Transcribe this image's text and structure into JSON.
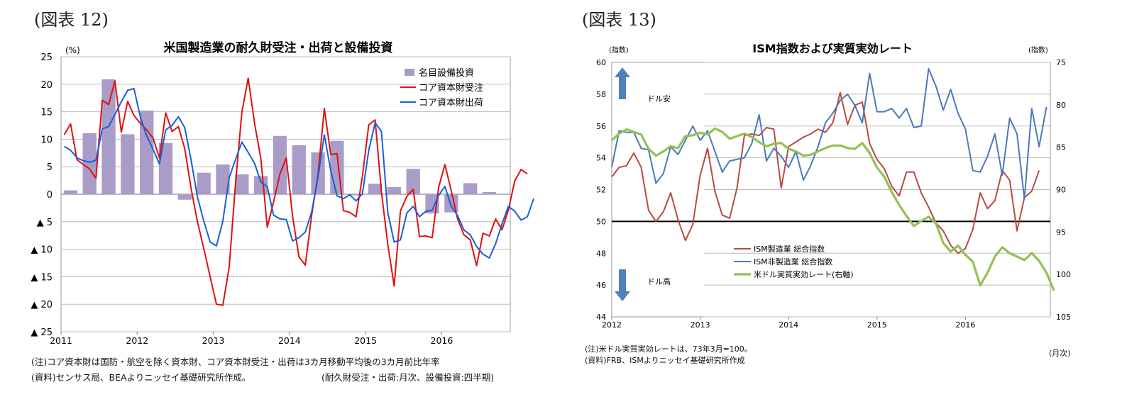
{
  "figures": {
    "fig12_label": "(図表 12)",
    "fig13_label": "(図表 13)"
  },
  "notes12": {
    "line1": "(注)コア資本財は国防・航空を除く資本財、コア資本財受注・出荷は3カ月移動平均後の3カ月前比年率",
    "line2": "(資料)センサス局、BEAよりニッセイ基礎研究所作成。",
    "line2_right": "(耐久財受注・出荷:月次、設備投資:四半期)"
  },
  "notes13": {
    "line1": "(注)米ドル実質実効レートは、73年3月=100。",
    "line2": "(資料)FRB、ISMよりニッセイ基礎研究所作成",
    "month_unit": "(月次)"
  },
  "colors": {
    "bar_purple": "#a99cc8",
    "red": "#e01010",
    "blue": "#1a5fd6",
    "ism_red": "#b84a44",
    "ism_blue": "#4a7ab8",
    "usd_green": "#93c054",
    "arrow_blue": "#4f81bd"
  },
  "chart_data": [
    {
      "type": "bar+line",
      "title": "米国製造業の耐久財受注・出荷と設備投資",
      "unit_label": "(%)",
      "xlabels": [
        "2011",
        "2012",
        "2013",
        "2014",
        "2015",
        "2016"
      ],
      "ylim": [
        -25,
        25
      ],
      "yticks": [
        "25",
        "20",
        "15",
        "10",
        "5",
        "0",
        "▲ 5",
        "▲ 10",
        "▲ 15",
        "▲ 20",
        "▲ 25"
      ],
      "legend_position": "top-right",
      "bars": {
        "name": "名目設備投資",
        "values": [
          0.7,
          11.1,
          20.9,
          10.9,
          15.2,
          9.3,
          -1.0,
          3.9,
          5.4,
          3.6,
          3.3,
          10.6,
          8.9,
          7.6,
          9.7,
          -0.2,
          1.9,
          1.3,
          4.6,
          -3.5,
          -3.3,
          2.0,
          0.4
        ]
      },
      "series": [
        {
          "name": "コア資本財受注",
          "values": [
            10.8,
            12.8,
            6.3,
            5.4,
            4.6,
            2.9,
            17.1,
            16.3,
            20.6,
            11.3,
            16.9,
            14.3,
            12.9,
            11.7,
            10.2,
            6.6,
            14.8,
            11.4,
            12.3,
            8.3,
            1.0,
            -5.0,
            -9.9,
            -15.0,
            -20.0,
            -20.2,
            -13.3,
            2.0,
            14.9,
            21.1,
            12.9,
            6.4,
            -6.0,
            -1.4,
            3.7,
            6.6,
            -4.0,
            -11.4,
            -12.9,
            -3.8,
            3.6,
            15.6,
            7.2,
            7.4,
            -3.0,
            -3.3,
            -4.1,
            3.3,
            12.6,
            13.5,
            0.4,
            -9.1,
            -16.7,
            -3.0,
            -0.4,
            0.9,
            -7.7,
            -7.6,
            -7.9,
            1.2,
            5.4,
            0.6,
            -4.5,
            -7.4,
            -8.3,
            -13.0,
            -7.1,
            -7.6,
            -4.5,
            -6.5,
            -2.9,
            2.4,
            4.5,
            3.7
          ]
        },
        {
          "name": "コア資本財出荷",
          "values": [
            8.7,
            8.0,
            6.6,
            6.1,
            5.8,
            6.2,
            11.9,
            12.3,
            14.5,
            16.8,
            18.9,
            19.2,
            14.0,
            10.6,
            8.2,
            5.5,
            11.7,
            12.5,
            14.1,
            12.1,
            6.2,
            -0.5,
            -4.9,
            -8.7,
            -9.4,
            -4.9,
            3.0,
            6.3,
            9.5,
            7.6,
            5.6,
            2.2,
            1.4,
            -3.8,
            -4.5,
            -4.6,
            -8.5,
            -7.9,
            -6.9,
            -3.2,
            3.1,
            10.8,
            4.3,
            -0.3,
            -0.8,
            -0.1,
            -1.2,
            0.1,
            8.0,
            13.0,
            11.4,
            -3.3,
            -8.7,
            -8.3,
            -3.4,
            -2.2,
            -4.1,
            -3.1,
            -2.9,
            -0.2,
            1.4,
            -2.2,
            -3.9,
            -6.5,
            -7.4,
            -9.5,
            -10.9,
            -11.6,
            -9.0,
            -5.4,
            -2.2,
            -3.1,
            -4.7,
            -4.1,
            -0.8
          ]
        }
      ]
    },
    {
      "type": "line",
      "title": "ISM指数および実質実効レート",
      "left_axis_label": "(指数)",
      "right_axis_label": "(指数)",
      "xlabels": [
        "2012",
        "2013",
        "2014",
        "2015",
        "2016"
      ],
      "ylim_left": [
        44,
        60
      ],
      "yticks_left": [
        "60",
        "58",
        "56",
        "54",
        "52",
        "50",
        "48",
        "46",
        "44"
      ],
      "ylim_right": [
        105,
        75
      ],
      "yticks_right": [
        "75",
        "80",
        "85",
        "90",
        "95",
        "100",
        "105"
      ],
      "annotations": [
        "ドル安",
        "ドル高"
      ],
      "legend_position": "bottom-left",
      "series": [
        {
          "name": "ISM製造業 総合指数",
          "axis": "left",
          "values": [
            52.8,
            53.4,
            53.5,
            54.3,
            53.4,
            50.7,
            50.0,
            50.6,
            51.8,
            50.1,
            48.8,
            49.8,
            52.9,
            54.6,
            51.9,
            50.4,
            50.2,
            52.1,
            55.4,
            55.5,
            55.4,
            55.9,
            55.8,
            52.1,
            54.7,
            55.0,
            55.3,
            55.5,
            55.8,
            55.6,
            56.2,
            58.1,
            56.1,
            57.3,
            57.5,
            54.9,
            53.9,
            53.3,
            52.2,
            51.6,
            53.1,
            53.1,
            51.8,
            50.9,
            49.9,
            49.4,
            48.5,
            48.0,
            48.3,
            49.5,
            51.8,
            50.8,
            51.3,
            53.2,
            52.6,
            49.4,
            51.5,
            51.9,
            53.2
          ]
        },
        {
          "name": "ISM非製造業 総合指数",
          "axis": "left",
          "values": [
            53.4,
            55.7,
            55.6,
            55.6,
            54.6,
            54.5,
            52.4,
            53.0,
            54.7,
            54.2,
            55.1,
            56.0,
            55.1,
            55.7,
            54.4,
            53.1,
            53.8,
            53.9,
            54.0,
            54.9,
            56.7,
            53.8,
            54.6,
            54.1,
            53.4,
            54.4,
            52.6,
            53.5,
            54.7,
            56.2,
            56.8,
            57.6,
            58.0,
            57.3,
            56.2,
            59.3,
            56.9,
            56.9,
            57.1,
            56.5,
            57.1,
            55.9,
            56.0,
            59.6,
            58.5,
            57.0,
            58.3,
            56.8,
            55.8,
            53.2,
            53.1,
            54.1,
            55.5,
            52.9,
            56.5,
            55.5,
            51.4,
            57.1,
            54.7,
            57.2
          ]
        },
        {
          "name": "米ドル実質実効レート(右軸)",
          "axis": "right",
          "values": [
            84.2,
            83.4,
            82.9,
            83.2,
            83.5,
            85.2,
            86.0,
            85.5,
            84.9,
            85.1,
            83.7,
            83.6,
            83.3,
            83.5,
            82.8,
            83.2,
            84.0,
            83.7,
            83.4,
            83.8,
            84.4,
            84.9,
            84.6,
            84.5,
            85.2,
            85.5,
            86.0,
            85.9,
            85.5,
            85.1,
            84.8,
            84.8,
            85.1,
            85.2,
            84.5,
            85.7,
            87.4,
            88.5,
            90.3,
            91.8,
            93.1,
            94.3,
            93.7,
            93.2,
            94.0,
            96.3,
            97.3,
            96.6,
            97.7,
            98.5,
            101.3,
            99.8,
            97.9,
            96.8,
            97.5,
            97.9,
            98.3,
            97.5,
            98.4,
            99.8,
            101.9
          ]
        }
      ]
    }
  ]
}
